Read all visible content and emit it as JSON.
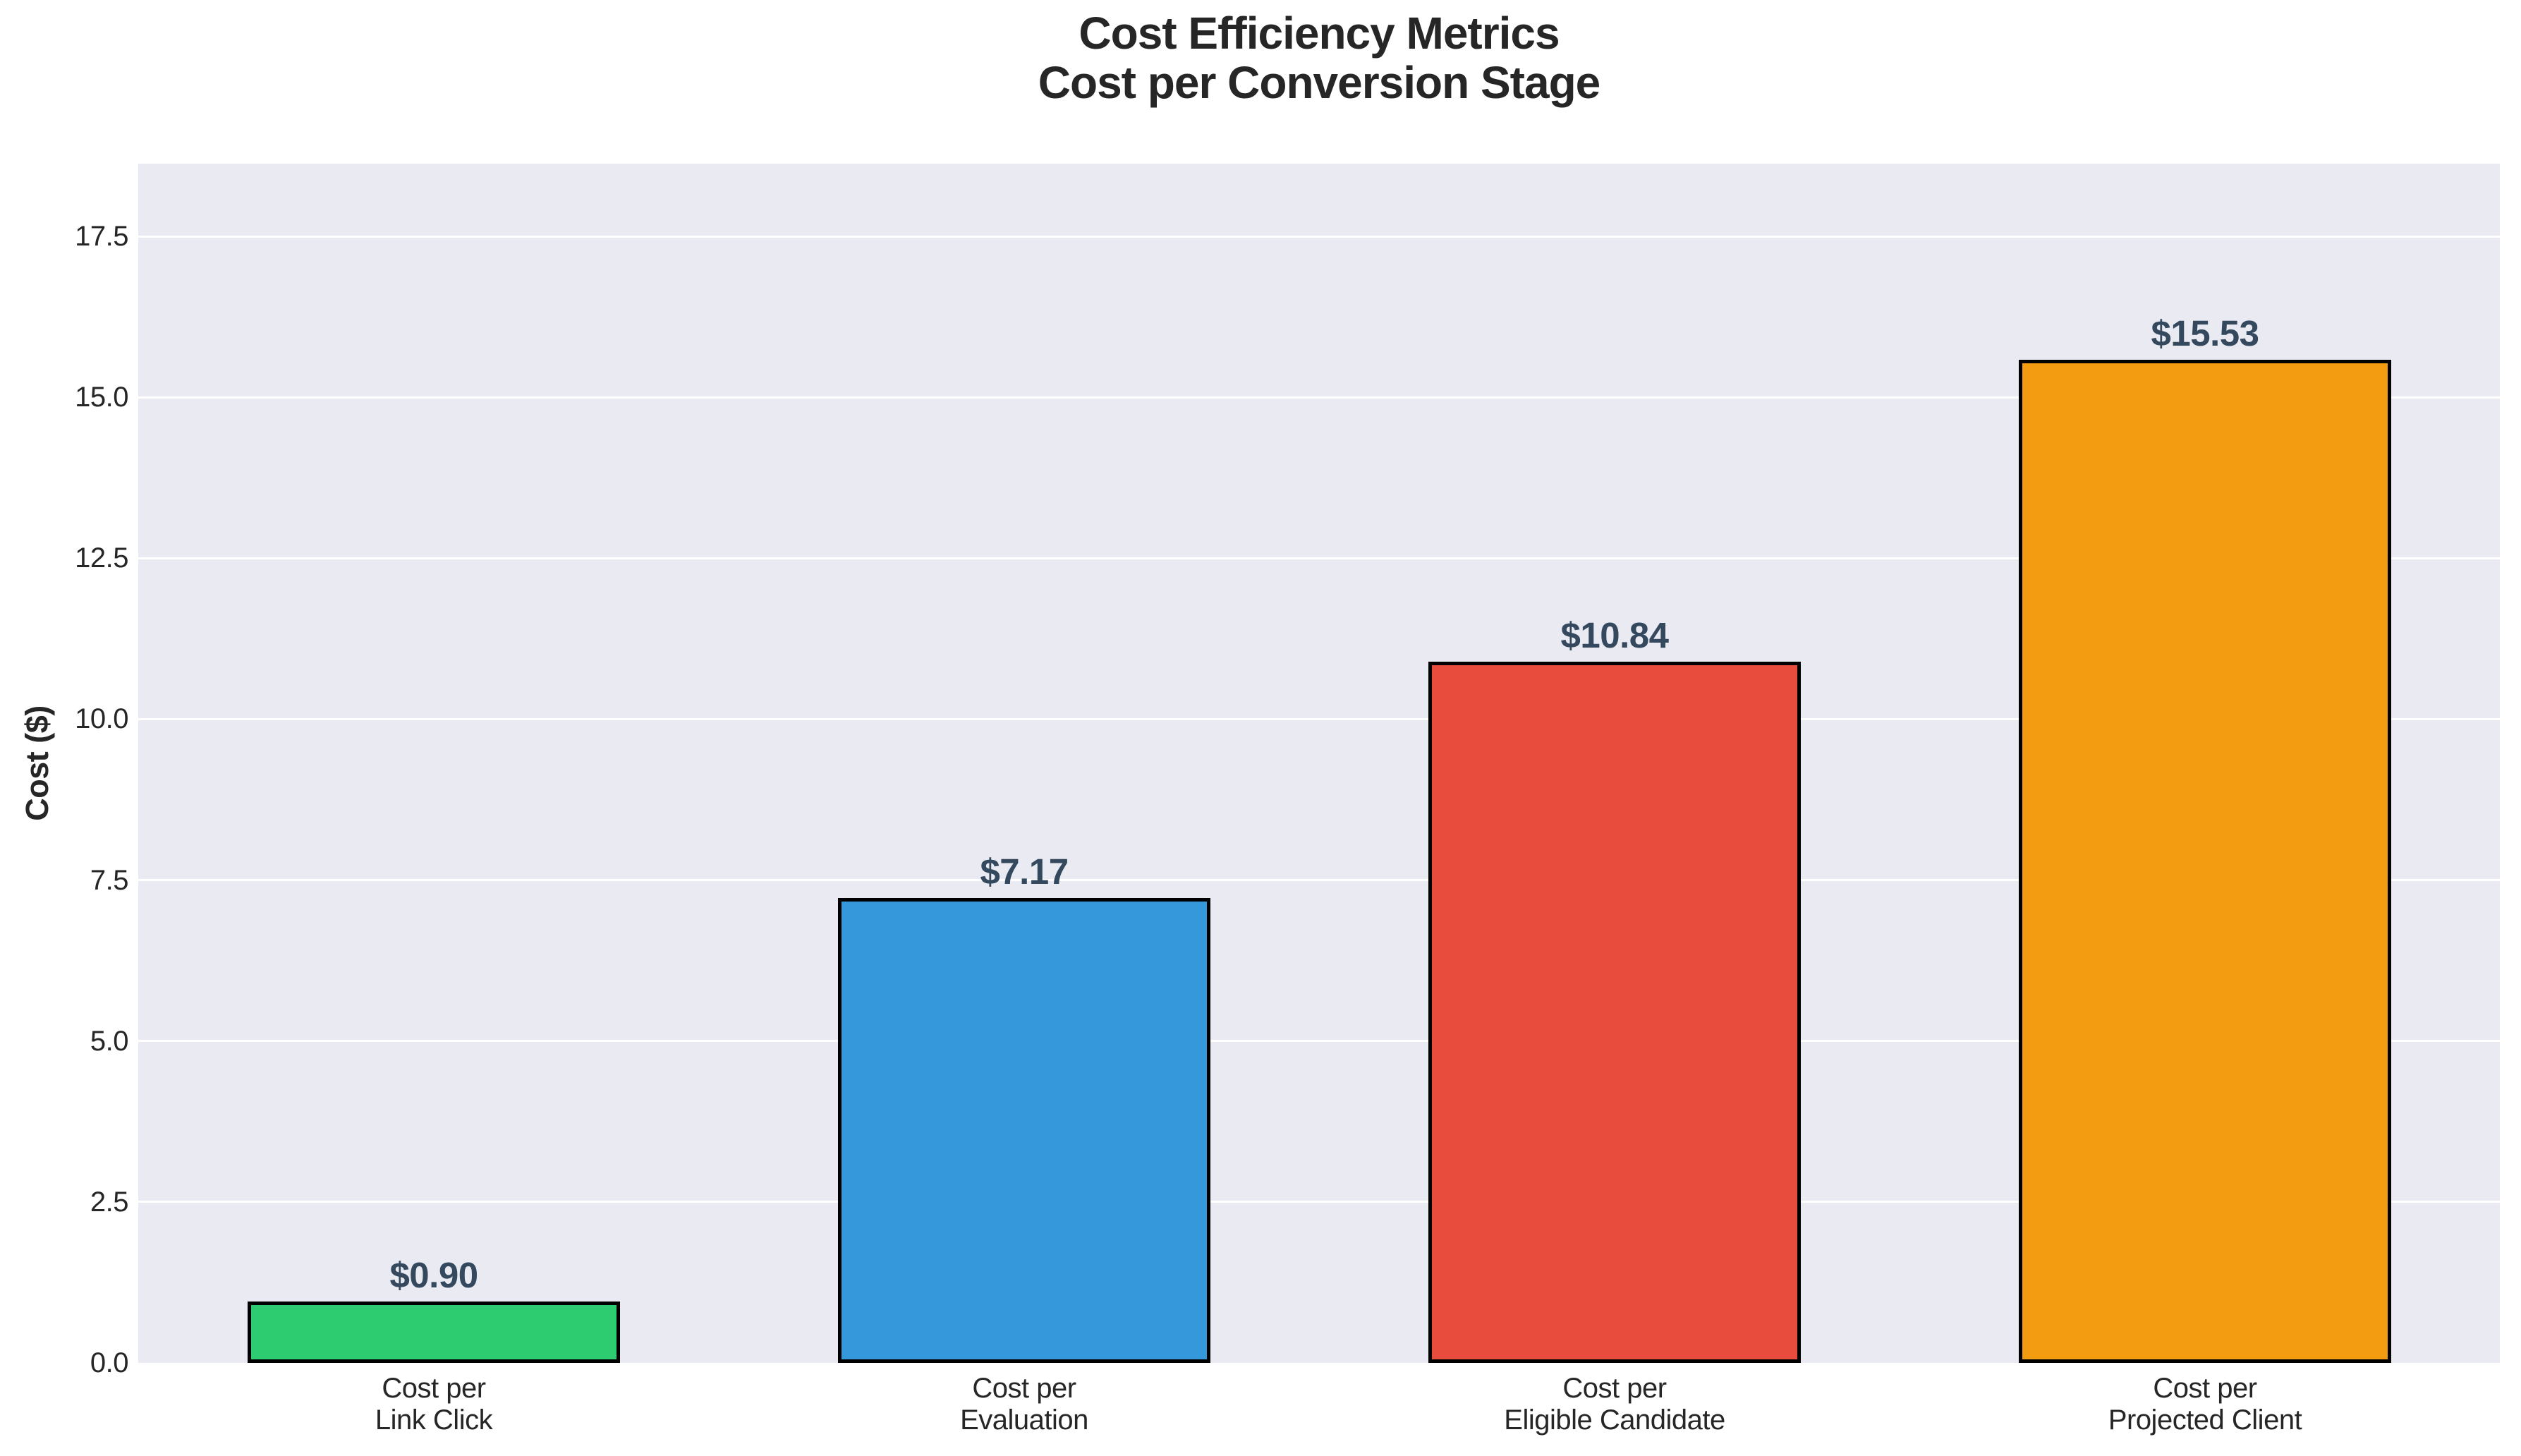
{
  "chart_data": {
    "type": "bar",
    "title": "Cost Efficiency Metrics\nCost per Conversion Stage",
    "ylabel": "Cost ($)",
    "xlabel": "",
    "categories": [
      "Cost per\nLink Click",
      "Cost per\nEvaluation",
      "Cost per\nEligible Candidate",
      "Cost per\nProjected Client"
    ],
    "values": [
      0.9,
      7.17,
      10.84,
      15.53
    ],
    "bar_labels": [
      "$0.90",
      "$7.17",
      "$10.84",
      "$15.53"
    ],
    "bar_colors": [
      "#2ecc71",
      "#3498db",
      "#e74c3c",
      "#f39c12"
    ],
    "bar_edge_color": "#000000",
    "yticks": [
      0.0,
      2.5,
      5.0,
      7.5,
      10.0,
      12.5,
      15.0,
      17.5
    ],
    "ytick_labels": [
      "0.0",
      "2.5",
      "5.0",
      "7.5",
      "10.0",
      "12.5",
      "15.0",
      "17.5"
    ],
    "ylim": [
      0,
      18.63
    ],
    "grid": true,
    "legend": null,
    "styles": {
      "figure_background": "#ffffff",
      "plot_background": "#eaeaf2",
      "grid_color": "#ffffff",
      "value_label_color": "#34495e",
      "tick_label_color": "#262626",
      "title_color": "#262626"
    }
  }
}
